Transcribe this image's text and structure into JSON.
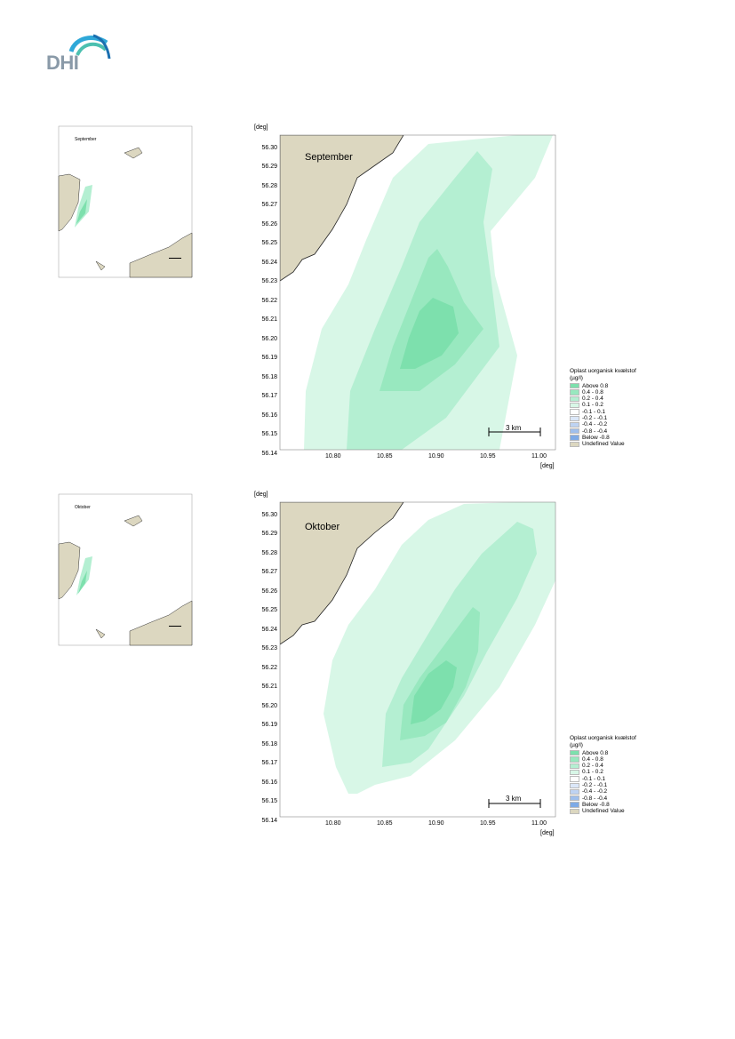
{
  "logo": {
    "text": "DHI"
  },
  "colors": {
    "land": "#dcd7c0",
    "sea_bg": "#ffffff"
  },
  "legend": {
    "title": "Oplast uorganisk kvælstof",
    "unit": "(µg/l)",
    "entries": [
      {
        "label": "Above  0.8",
        "color": "#7de0ad"
      },
      {
        "label": "0.4 -  0.8",
        "color": "#98e8bf"
      },
      {
        "label": "0.2 -  0.4",
        "color": "#b4efd2"
      },
      {
        "label": "0.1 -  0.2",
        "color": "#d8f7e7"
      },
      {
        "label": "-0.1 -  0.1",
        "color": "#ffffff"
      },
      {
        "label": "-0.2 - -0.1",
        "color": "#dbe7f8"
      },
      {
        "label": "-0.4 - -0.2",
        "color": "#bed3f2"
      },
      {
        "label": "-0.8 - -0.4",
        "color": "#9fbfec"
      },
      {
        "label": "Below -0.8",
        "color": "#7eaae6"
      },
      {
        "label": "Undefined Value",
        "color": "#dcd7c0"
      }
    ]
  },
  "axes": {
    "unit_top": "[deg]",
    "unit_right": "[deg]",
    "yticks": [
      "56.30",
      "56.29",
      "56.28",
      "56.27",
      "56.26",
      "56.25",
      "56.24",
      "56.23",
      "56.22",
      "56.21",
      "56.20",
      "56.19",
      "56.18",
      "56.17",
      "56.16",
      "56.15",
      "56.14"
    ],
    "xticks": [
      "10.80",
      "10.85",
      "10.90",
      "10.95",
      "11.00"
    ],
    "xlim": [
      10.75,
      11.0
    ],
    "ylim": [
      56.14,
      56.3
    ]
  },
  "scalebar": {
    "label": "3 km"
  },
  "maps": [
    {
      "month": "September"
    },
    {
      "month": "Oktober"
    }
  ]
}
